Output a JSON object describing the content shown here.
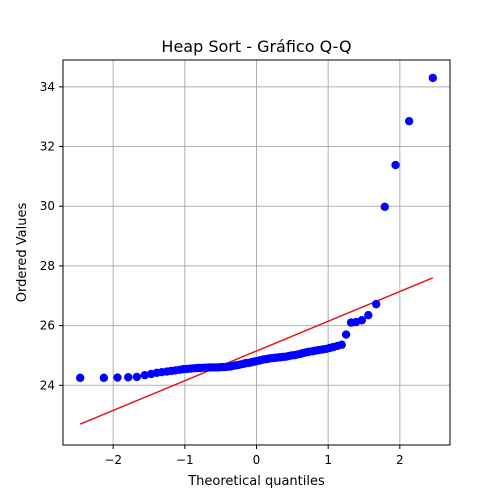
{
  "chart_data": {
    "type": "scatter",
    "title": "Heap Sort - Gráfico Q-Q",
    "xlabel": "Theoretical quantiles",
    "ylabel": "Ordered Values",
    "xlim": [
      -2.7,
      2.7
    ],
    "ylim": [
      22.0,
      34.9
    ],
    "xticks": [
      -2,
      -1,
      0,
      1,
      2
    ],
    "yticks": [
      24,
      26,
      28,
      30,
      32,
      34
    ],
    "grid": true,
    "colors": {
      "points": "#0000ff",
      "fit_line": "#e41a1c"
    },
    "fit_line": {
      "x": [
        -2.46,
        2.46
      ],
      "y": [
        22.7,
        27.6
      ]
    },
    "points": {
      "x": [
        -2.46,
        -2.13,
        -1.94,
        -1.79,
        -1.67,
        -1.56,
        -1.47,
        -1.39,
        -1.32,
        -1.25,
        -1.19,
        -1.13,
        -1.07,
        -1.02,
        -0.97,
        -0.92,
        -0.87,
        -0.82,
        -0.78,
        -0.73,
        -0.69,
        -0.65,
        -0.61,
        -0.57,
        -0.53,
        -0.49,
        -0.45,
        -0.41,
        -0.37,
        -0.33,
        -0.29,
        -0.26,
        -0.22,
        -0.18,
        -0.15,
        -0.11,
        -0.07,
        -0.04,
        0.0,
        0.04,
        0.07,
        0.11,
        0.15,
        0.18,
        0.22,
        0.26,
        0.29,
        0.33,
        0.37,
        0.41,
        0.45,
        0.49,
        0.53,
        0.57,
        0.61,
        0.65,
        0.69,
        0.73,
        0.78,
        0.82,
        0.87,
        0.92,
        0.97,
        1.02,
        1.07,
        1.13,
        1.19,
        1.25,
        1.32,
        1.39,
        1.47,
        1.56,
        1.67,
        1.79,
        1.94,
        2.13,
        2.46
      ],
      "y": [
        24.25,
        24.25,
        24.26,
        24.27,
        24.28,
        24.34,
        24.38,
        24.42,
        24.44,
        24.46,
        24.48,
        24.5,
        24.52,
        24.54,
        24.55,
        24.56,
        24.57,
        24.58,
        24.58,
        24.59,
        24.59,
        24.6,
        24.6,
        24.6,
        24.6,
        24.61,
        24.61,
        24.62,
        24.63,
        24.65,
        24.67,
        24.68,
        24.7,
        24.72,
        24.74,
        24.75,
        24.77,
        24.79,
        24.81,
        24.83,
        24.85,
        24.87,
        24.88,
        24.9,
        24.91,
        24.92,
        24.93,
        24.94,
        24.95,
        24.96,
        24.98,
        25.0,
        25.01,
        25.03,
        25.05,
        25.08,
        25.1,
        25.12,
        25.14,
        25.16,
        25.18,
        25.2,
        25.22,
        25.25,
        25.28,
        25.32,
        25.36,
        25.7,
        26.1,
        26.12,
        26.18,
        26.35,
        26.72,
        29.98,
        31.38,
        32.85,
        34.3
      ]
    }
  }
}
